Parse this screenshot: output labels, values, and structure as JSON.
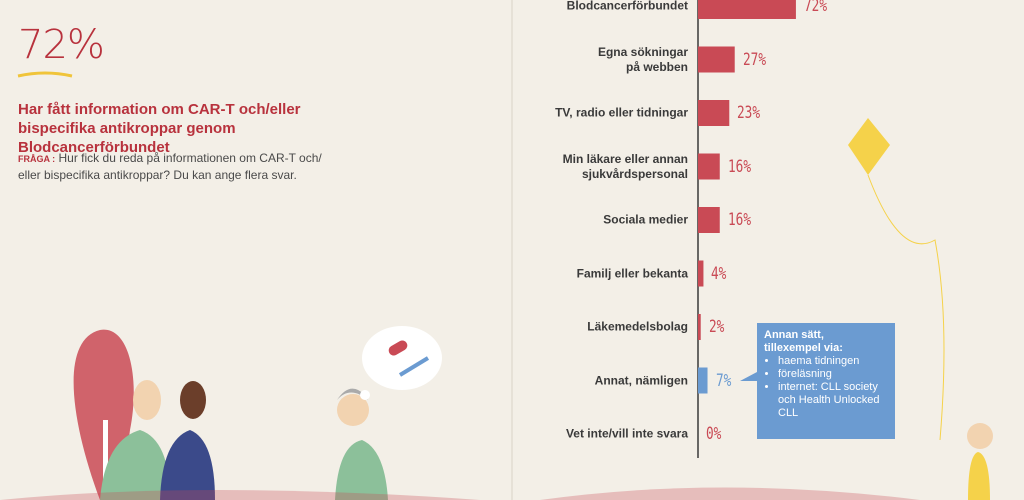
{
  "highlight": "72%",
  "headline": "Har fått information om CAR-T och/eller bispecifika antikroppar genom Blodcancerförbundet",
  "question_label": "FRÅGA :",
  "question": "Hur fick du reda på informationen om CAR-T och/ eller bispecifika antikroppar? Du kan ange flera svar.",
  "chart_data": {
    "type": "hbar",
    "categories": [
      "Blodcancerförbundet",
      "Egna sökningar\npå webben",
      "TV, radio eller tidningar",
      "Min läkare eller annan\nsjukvårdspersonal",
      "Sociala medier",
      "Familj eller bekanta",
      "Läkemedelsbolag",
      "Annat, nämligen",
      "Vet inte/vill inte svara"
    ],
    "values": [
      72,
      27,
      23,
      16,
      16,
      4,
      2,
      7,
      0
    ],
    "value_labels": [
      "72%",
      "27%",
      "23%",
      "16%",
      "16%",
      "4%",
      "2%",
      "7%",
      "0%"
    ],
    "colors": [
      "#c94a55",
      "#c94a55",
      "#c94a55",
      "#c94a55",
      "#c94a55",
      "#c94a55",
      "#c94a55",
      "#6b9bd1",
      "#c94a55"
    ],
    "xlim": [
      0,
      100
    ]
  },
  "callout": {
    "title": "Annan sätt,\ntillexempel via:",
    "items": [
      "haema tidningen",
      "föreläsning",
      "internet: CLL society och Health Unlocked CLL"
    ]
  }
}
